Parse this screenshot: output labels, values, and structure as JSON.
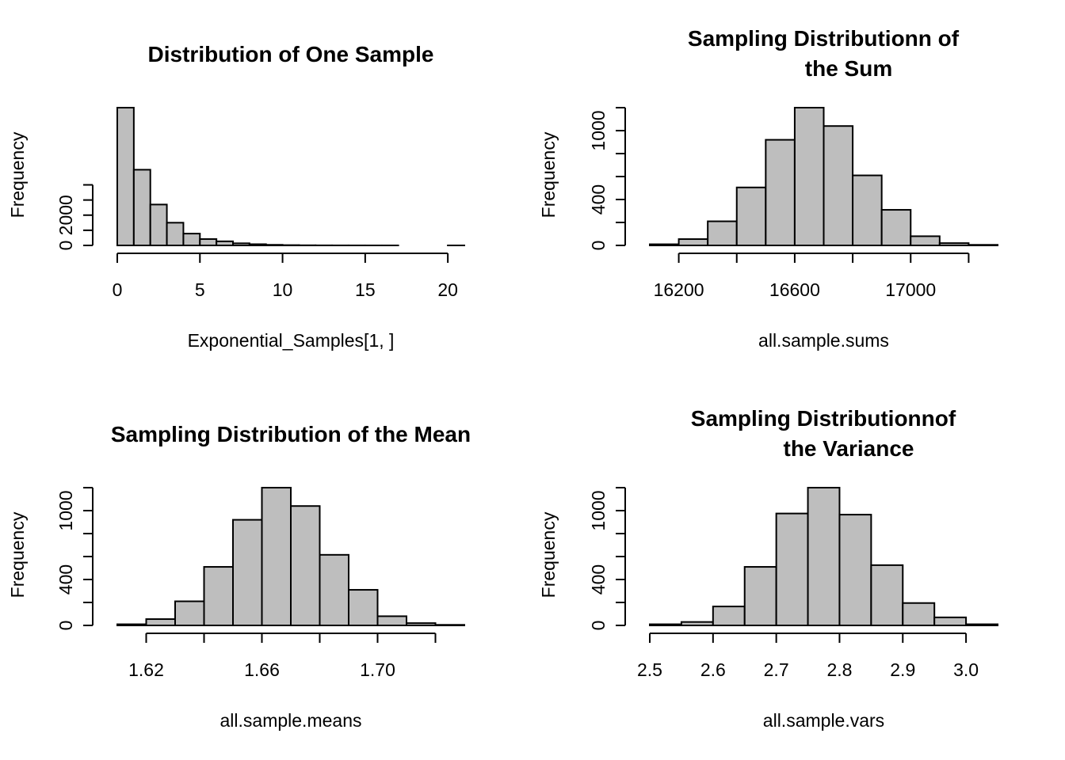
{
  "chart_data": [
    {
      "type": "bar",
      "title": [
        "Distribution of One Sample"
      ],
      "xlabel": "Exponential_Samples[1, ]",
      "ylabel": "Frequency",
      "bin_edges": [
        0,
        1,
        2,
        3,
        4,
        5,
        6,
        7,
        8,
        9,
        10,
        11,
        12,
        13,
        14,
        15,
        16,
        17,
        18,
        19,
        20,
        21
      ],
      "counts": [
        9100,
        5000,
        2700,
        1500,
        780,
        420,
        270,
        140,
        80,
        40,
        20,
        10,
        5,
        3,
        2,
        1,
        1,
        0,
        0,
        0,
        1
      ],
      "xlim": [
        0,
        21
      ],
      "ylim": [
        0,
        9100
      ],
      "xticks": [
        0,
        5,
        10,
        15,
        20
      ],
      "xtick_labels": [
        "0",
        "5",
        "10",
        "15",
        "20"
      ],
      "yticks": [
        0,
        1000,
        2000,
        3000,
        4000
      ],
      "ytick_labels": [
        "0",
        "",
        "2000",
        "",
        ""
      ],
      "grid": false
    },
    {
      "type": "bar",
      "title": [
        "Sampling Distributionn of",
        "the Sum"
      ],
      "xlabel": "all.sample.sums",
      "ylabel": "Frequency",
      "bin_edges": [
        16100,
        16200,
        16300,
        16400,
        16500,
        16600,
        16700,
        16800,
        16900,
        17000,
        17100,
        17200,
        17300
      ],
      "counts": [
        10,
        55,
        210,
        505,
        920,
        1200,
        1040,
        610,
        310,
        80,
        20,
        5
      ],
      "xlim": [
        16100,
        17300
      ],
      "ylim": [
        0,
        1200
      ],
      "xticks": [
        16200,
        16400,
        16600,
        16800,
        17000,
        17200
      ],
      "xtick_labels": [
        "16200",
        "",
        "16600",
        "",
        "17000",
        ""
      ],
      "yticks": [
        0,
        200,
        400,
        600,
        800,
        1000,
        1200
      ],
      "ytick_labels": [
        "0",
        "",
        "400",
        "",
        "",
        "1000",
        ""
      ],
      "grid": false
    },
    {
      "type": "bar",
      "title": [
        "Sampling Distribution of the Mean"
      ],
      "xlabel": "all.sample.means",
      "ylabel": "Frequency",
      "bin_edges": [
        1.61,
        1.62,
        1.63,
        1.64,
        1.65,
        1.66,
        1.67,
        1.68,
        1.69,
        1.7,
        1.71,
        1.72,
        1.73
      ],
      "counts": [
        10,
        55,
        210,
        510,
        920,
        1200,
        1040,
        615,
        310,
        80,
        20,
        5
      ],
      "xlim": [
        1.61,
        1.73
      ],
      "ylim": [
        0,
        1200
      ],
      "xticks": [
        1.62,
        1.64,
        1.66,
        1.68,
        1.7,
        1.72
      ],
      "xtick_labels": [
        "1.62",
        "",
        "1.66",
        "",
        "1.70",
        ""
      ],
      "yticks": [
        0,
        200,
        400,
        600,
        800,
        1000,
        1200
      ],
      "ytick_labels": [
        "0",
        "",
        "400",
        "",
        "",
        "1000",
        ""
      ],
      "grid": false
    },
    {
      "type": "bar",
      "title": [
        "Sampling Distributionnof",
        "the Variance"
      ],
      "xlabel": "all.sample.vars",
      "ylabel": "Frequency",
      "bin_edges": [
        2.5,
        2.55,
        2.6,
        2.65,
        2.7,
        2.75,
        2.8,
        2.85,
        2.9,
        2.95,
        3.0,
        3.05
      ],
      "counts": [
        10,
        30,
        165,
        510,
        975,
        1200,
        965,
        525,
        195,
        70,
        10
      ],
      "xlim": [
        2.5,
        3.05
      ],
      "ylim": [
        0,
        1200
      ],
      "xticks": [
        2.5,
        2.6,
        2.7,
        2.8,
        2.9,
        3.0
      ],
      "xtick_labels": [
        "2.5",
        "2.6",
        "2.7",
        "2.8",
        "2.9",
        "3.0"
      ],
      "yticks": [
        0,
        200,
        400,
        600,
        800,
        1000,
        1200
      ],
      "ytick_labels": [
        "0",
        "",
        "400",
        "",
        "",
        "1000",
        ""
      ],
      "grid": false
    }
  ]
}
